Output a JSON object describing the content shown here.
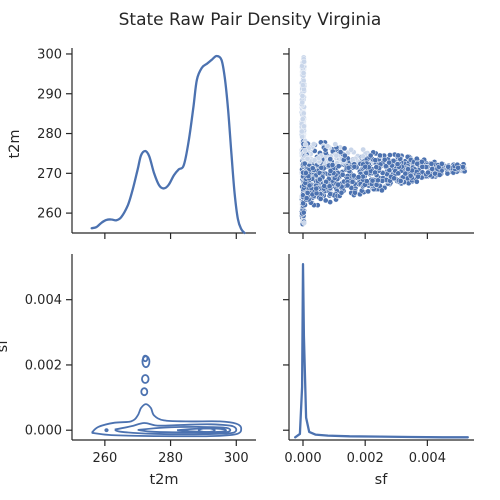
{
  "chart_data": {
    "type": "pairplot",
    "title": "State Raw Pair Density Virginia",
    "variables": [
      "t2m",
      "sf"
    ],
    "color": "#4c72b0",
    "panels": [
      {
        "id": "t2m-kde",
        "type": "kde",
        "variable": "t2m",
        "xlim": [
          250,
          306
        ],
        "x_ticks": [
          260,
          280,
          300
        ],
        "y_ticks_shared": [
          260,
          270,
          280,
          290,
          300
        ],
        "ylim": [
          255,
          301.5
        ],
        "ylabel": "t2m",
        "curve": [
          [
            256,
            256.2
          ],
          [
            257.5,
            256.5
          ],
          [
            259,
            257.6
          ],
          [
            260.5,
            258.3
          ],
          [
            262,
            258.4
          ],
          [
            263.5,
            258.2
          ],
          [
            265,
            259
          ],
          [
            267,
            262
          ],
          [
            268.5,
            266
          ],
          [
            270,
            271
          ],
          [
            271,
            274.5
          ],
          [
            272.3,
            275.6
          ],
          [
            273.5,
            274.3
          ],
          [
            275,
            270
          ],
          [
            276.5,
            267
          ],
          [
            278,
            266.2
          ],
          [
            279.5,
            267.2
          ],
          [
            281,
            269.5
          ],
          [
            282.5,
            271
          ],
          [
            284,
            272
          ],
          [
            285.5,
            278
          ],
          [
            287,
            287
          ],
          [
            288,
            293.5
          ],
          [
            289.5,
            296.5
          ],
          [
            291,
            297.5
          ],
          [
            292.5,
            298.5
          ],
          [
            294,
            299.5
          ],
          [
            295.5,
            298.5
          ],
          [
            296.5,
            294
          ],
          [
            297.5,
            286
          ],
          [
            298.5,
            275
          ],
          [
            299.5,
            265
          ],
          [
            300.5,
            258.5
          ],
          [
            301.5,
            256
          ],
          [
            302.5,
            255
          ]
        ]
      },
      {
        "id": "sf-vs-t2m-scatter",
        "type": "scatter",
        "x": "sf",
        "y": "t2m",
        "xlim": [
          -0.00045,
          0.0055
        ],
        "ylim": [
          255,
          301.5
        ],
        "x_ticks": [
          0.0,
          0.002,
          0.004
        ]
      },
      {
        "id": "t2m-vs-sf-contours",
        "type": "kde2d",
        "x": "t2m",
        "y": "sf",
        "xlim": [
          250,
          306
        ],
        "ylim": [
          -0.0003,
          0.0054
        ],
        "x_ticks": [
          260,
          280,
          300
        ],
        "x_tick_labels": [
          "260",
          "280",
          "300"
        ],
        "y_ticks": [
          0.0,
          0.002,
          0.004
        ],
        "y_tick_labels": [
          "0.000",
          "0.002",
          "0.004"
        ],
        "xlabel": "t2m",
        "ylabel": "sf"
      },
      {
        "id": "sf-kde",
        "type": "kde",
        "variable": "sf",
        "xlim": [
          -0.00045,
          0.0055
        ],
        "x_ticks": [
          0.0,
          0.002,
          0.004
        ],
        "x_tick_labels": [
          "0.000",
          "0.002",
          "0.004"
        ],
        "xlabel": "sf",
        "curve": [
          [
            -0.00025,
            2e-05
          ],
          [
            -0.0001,
            0.00012
          ],
          [
            -3e-05,
            0.0015
          ],
          [
            0.0,
            0.0051
          ],
          [
            3e-05,
            0.003
          ],
          [
            0.0001,
            0.0006
          ],
          [
            0.0002,
            0.00018
          ],
          [
            0.0004,
            0.0001
          ],
          [
            0.0008,
            7e-05
          ],
          [
            0.0015,
            5e-05
          ],
          [
            0.0025,
            4e-05
          ],
          [
            0.0035,
            3e-05
          ],
          [
            0.0045,
            2e-05
          ],
          [
            0.0053,
            2e-05
          ]
        ]
      }
    ]
  }
}
